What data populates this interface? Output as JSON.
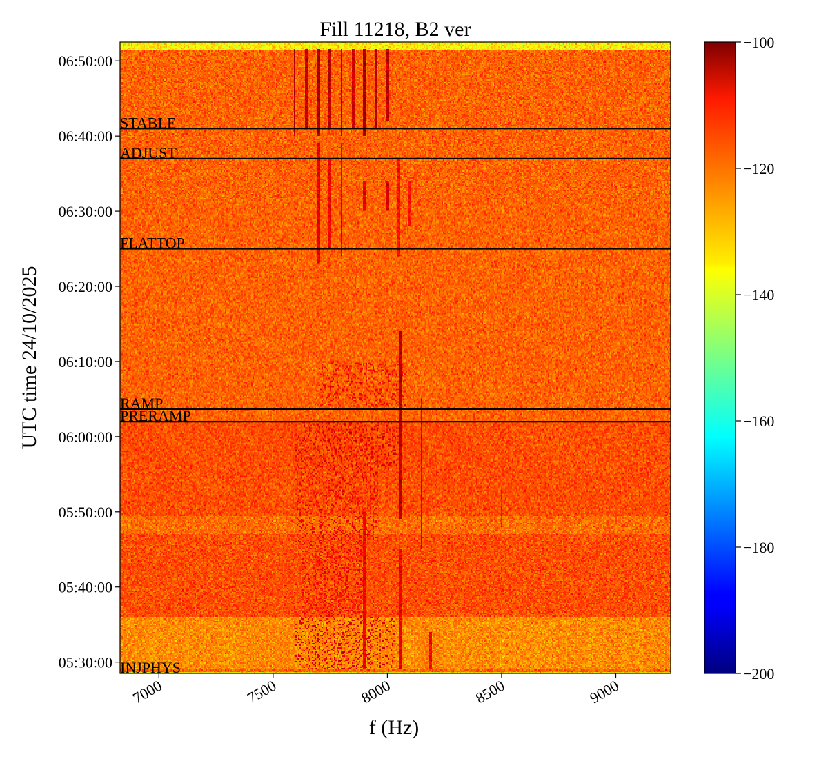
{
  "chart_data": {
    "type": "heatmap",
    "title": "Fill 11218, B2 ver",
    "xlabel": "f (Hz)",
    "ylabel": "UTC time 24/10/2025",
    "xlim": [
      6830,
      9240
    ],
    "ylim": [
      "05:28:30",
      "06:52:30"
    ],
    "x_ticks": [
      {
        "value": 7000,
        "label": "7000"
      },
      {
        "value": 7500,
        "label": "7500"
      },
      {
        "value": 8000,
        "label": "8000"
      },
      {
        "value": 8500,
        "label": "8500"
      },
      {
        "value": 9000,
        "label": "9000"
      }
    ],
    "y_ticks": [
      {
        "value": "05:30:00",
        "label": "05:30:00"
      },
      {
        "value": "05:40:00",
        "label": "05:40:00"
      },
      {
        "value": "05:50:00",
        "label": "05:50:00"
      },
      {
        "value": "06:00:00",
        "label": "06:00:00"
      },
      {
        "value": "06:10:00",
        "label": "06:10:00"
      },
      {
        "value": "06:20:00",
        "label": "06:20:00"
      },
      {
        "value": "06:30:00",
        "label": "06:30:00"
      },
      {
        "value": "06:40:00",
        "label": "06:40:00"
      },
      {
        "value": "06:50:00",
        "label": "06:50:00"
      }
    ],
    "phases": [
      {
        "label": "STABLE",
        "time": "06:41:00"
      },
      {
        "label": "ADJUST",
        "time": "06:37:00"
      },
      {
        "label": "FLATTOP",
        "time": "06:25:00"
      },
      {
        "label": "RAMP",
        "time": "06:03:40"
      },
      {
        "label": "PRERAMP",
        "time": "06:02:00"
      },
      {
        "label": "INJPHYS",
        "time": "05:28:30"
      }
    ],
    "colorbar": {
      "colormap": "jet",
      "range": [
        -200,
        -100
      ],
      "ticks": [
        {
          "value": -100,
          "label": "−100"
        },
        {
          "value": -120,
          "label": "−120"
        },
        {
          "value": -140,
          "label": "−140"
        },
        {
          "value": -160,
          "label": "−160"
        },
        {
          "value": -180,
          "label": "−180"
        },
        {
          "value": -200,
          "label": "−200"
        }
      ]
    },
    "background_level": -122,
    "lines": [
      {
        "f": 7595,
        "t0": "06:40:00",
        "t1": "06:51:30",
        "level": -104
      },
      {
        "f": 7645,
        "t0": "06:41:00",
        "t1": "06:51:30",
        "level": -106
      },
      {
        "f": 7700,
        "t0": "06:40:00",
        "t1": "06:51:30",
        "level": -104
      },
      {
        "f": 7750,
        "t0": "06:41:00",
        "t1": "06:51:30",
        "level": -106
      },
      {
        "f": 7800,
        "t0": "06:40:00",
        "t1": "06:51:30",
        "level": -105
      },
      {
        "f": 7850,
        "t0": "06:41:00",
        "t1": "06:51:30",
        "level": -108
      },
      {
        "f": 7900,
        "t0": "06:40:00",
        "t1": "06:51:30",
        "level": -103
      },
      {
        "f": 7950,
        "t0": "06:41:00",
        "t1": "06:51:30",
        "level": -105
      },
      {
        "f": 8000,
        "t0": "06:42:00",
        "t1": "06:51:30",
        "level": -106
      },
      {
        "f": 7700,
        "t0": "06:23:00",
        "t1": "06:39:00",
        "level": -110
      },
      {
        "f": 7750,
        "t0": "06:25:00",
        "t1": "06:37:00",
        "level": -111
      },
      {
        "f": 7800,
        "t0": "06:24:00",
        "t1": "06:39:00",
        "level": -110
      },
      {
        "f": 7900,
        "t0": "06:30:00",
        "t1": "06:34:00",
        "level": -110
      },
      {
        "f": 8000,
        "t0": "06:30:00",
        "t1": "06:34:00",
        "level": -108
      },
      {
        "f": 8050,
        "t0": "06:24:00",
        "t1": "06:37:00",
        "level": -113
      },
      {
        "f": 8100,
        "t0": "06:28:00",
        "t1": "06:34:00",
        "level": -114
      },
      {
        "f": 8055,
        "t0": "05:49:00",
        "t1": "06:14:00",
        "level": -106
      },
      {
        "f": 8150,
        "t0": "05:45:00",
        "t1": "06:05:00",
        "level": -109
      },
      {
        "f": 7900,
        "t0": "05:29:00",
        "t1": "05:50:00",
        "level": -112
      },
      {
        "f": 8055,
        "t0": "05:29:00",
        "t1": "05:45:00",
        "level": -111
      },
      {
        "f": 8190,
        "t0": "05:29:00",
        "t1": "05:34:00",
        "level": -112
      },
      {
        "f": 8500,
        "t0": "05:48:00",
        "t1": "05:53:00",
        "level": -114
      }
    ],
    "blobs": [
      {
        "f0": 7700,
        "f1": 8080,
        "t0": "06:04:00",
        "t1": "06:10:00",
        "level": -111
      },
      {
        "f0": 7600,
        "f1": 8050,
        "t0": "05:56:00",
        "t1": "06:02:00",
        "level": -109
      },
      {
        "f0": 7600,
        "f1": 7960,
        "t0": "05:46:00",
        "t1": "05:56:00",
        "level": -110
      },
      {
        "f0": 7630,
        "f1": 7900,
        "t0": "05:36:00",
        "t1": "05:46:00",
        "level": -111
      },
      {
        "f0": 7600,
        "f1": 8030,
        "t0": "05:29:00",
        "t1": "05:36:00",
        "level": -109
      }
    ],
    "bands": [
      {
        "t0": "05:29:00",
        "t1": "05:36:00",
        "offset": -4
      },
      {
        "t0": "05:47:00",
        "t1": "05:49:30",
        "offset": -3
      },
      {
        "t0": "05:36:00",
        "t1": "06:02:00",
        "offset": 2
      }
    ]
  }
}
